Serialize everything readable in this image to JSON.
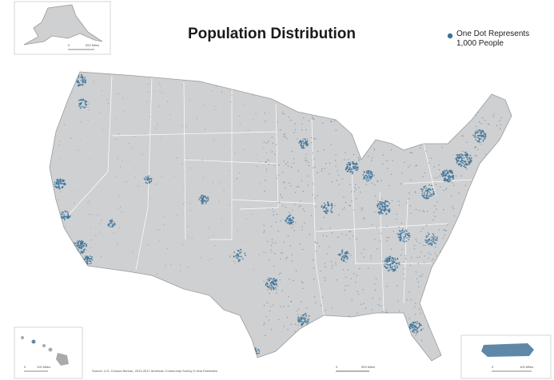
{
  "title": "Population Distribution",
  "legend": {
    "lines": [
      "One Dot Represents",
      "1,000 People"
    ]
  },
  "source": "Source: U.S. Census Bureau, 2013-2017 American Community Survey 5-Year Estimates",
  "insets": {
    "alaska": {
      "scale": [
        "0",
        "500 Miles"
      ]
    },
    "hawaii": {
      "scale": [
        "0",
        "100 Miles"
      ]
    },
    "puerto_rico": {
      "scale": [
        "0",
        "100 Miles"
      ]
    }
  },
  "mainland": {
    "scale": [
      "0",
      "500 Miles"
    ]
  }
}
